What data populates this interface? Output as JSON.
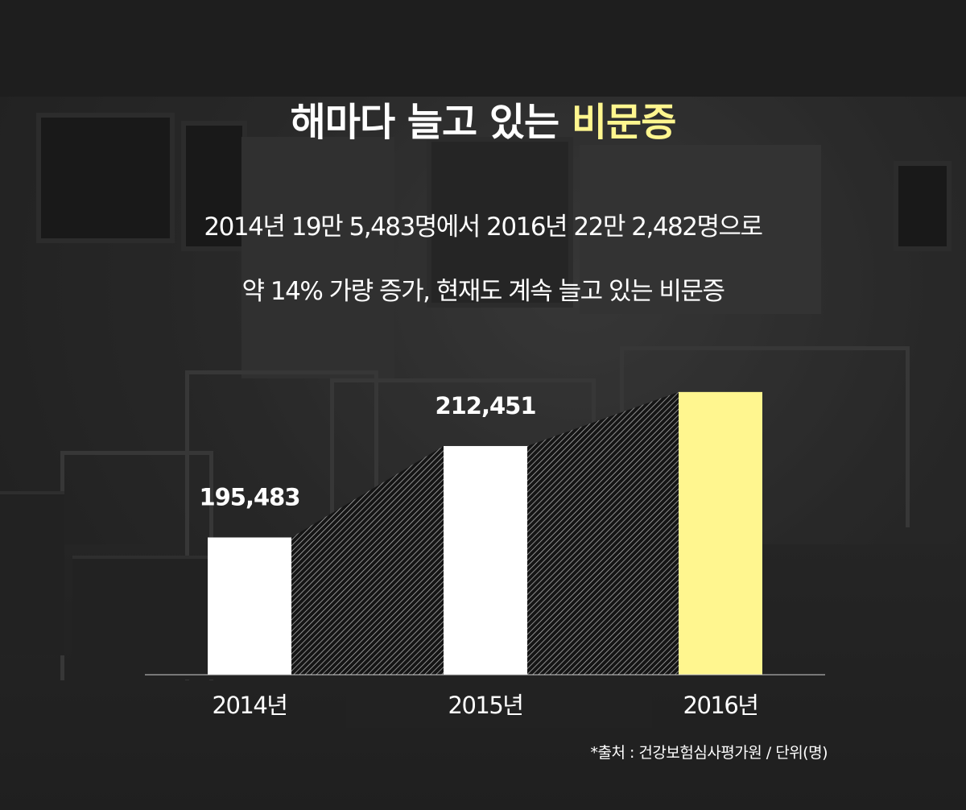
{
  "title": {
    "main": "해마다 늘고 있는 ",
    "highlight": "비문증"
  },
  "subtitle": {
    "line1": "2014년 19만 5,483명에서 2016년 22만 2,482명으로",
    "line2": "약 14% 가량 증가, 현재도 계속 늘고 있는 비문증"
  },
  "colors": {
    "highlight": "#fff68f",
    "bar": "#ffffff",
    "bar_highlight": "#fff68f",
    "text": "#ffffff"
  },
  "chart_data": {
    "type": "bar",
    "categories": [
      "2014년",
      "2015년",
      "2016년"
    ],
    "values": [
      195483,
      212451,
      222482
    ],
    "data_labels": [
      "195,483",
      "212,451",
      ""
    ],
    "highlight_index": 2,
    "connector": "hatched",
    "ylim": [
      170000,
      225000
    ],
    "grid": false
  },
  "source": "*출처 : 건강보험심사평가원 / 단위(명)"
}
